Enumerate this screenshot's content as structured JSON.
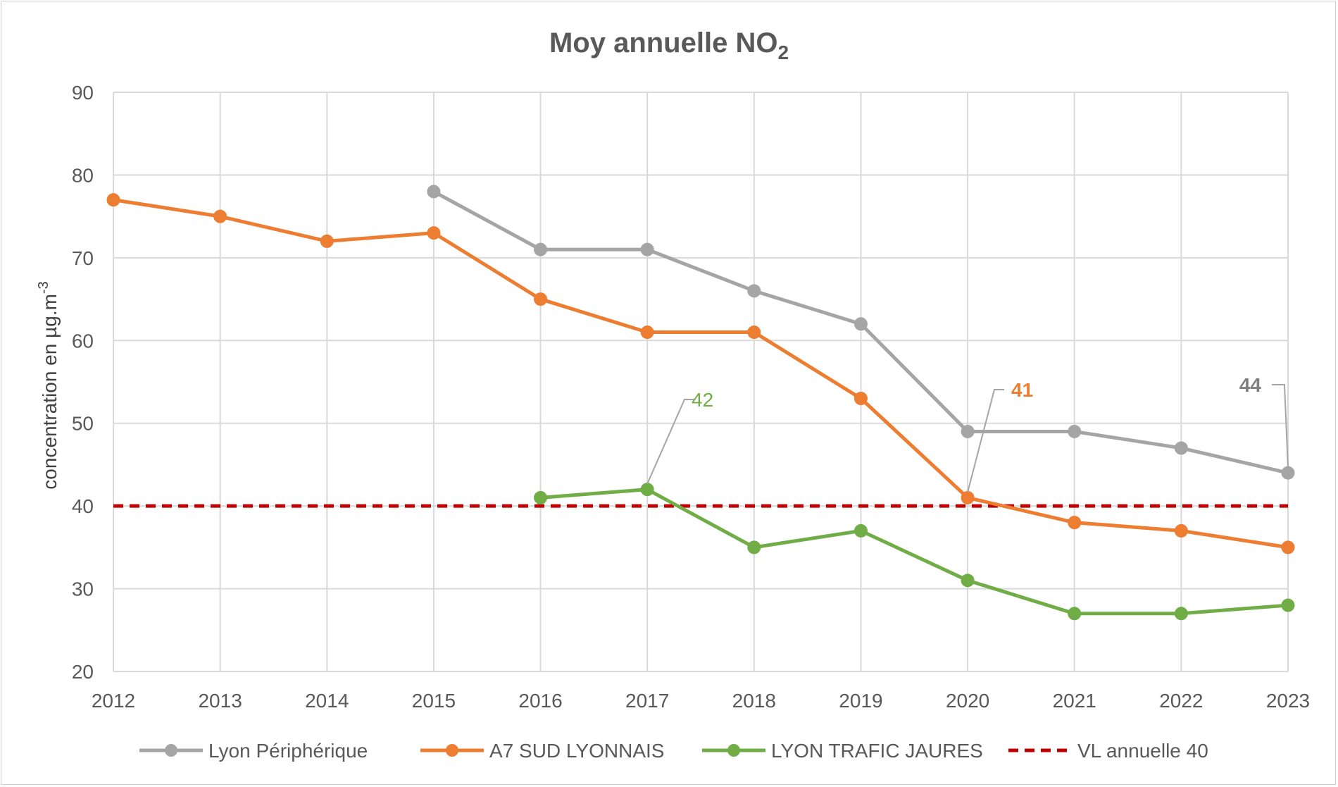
{
  "chart_data": {
    "type": "line",
    "title": "Moy annuelle NO",
    "title_subscript": "2",
    "ylabel": "concentration en µg.m",
    "ylabel_superscript": "-3",
    "xlabel": "",
    "x": [
      2012,
      2013,
      2014,
      2015,
      2016,
      2017,
      2018,
      2019,
      2020,
      2021,
      2022,
      2023
    ],
    "ylim": [
      20,
      90
    ],
    "yticks": [
      20,
      30,
      40,
      50,
      60,
      70,
      80,
      90
    ],
    "grid": true,
    "legend_position": "bottom",
    "series": [
      {
        "name": "Lyon Périphérique",
        "color": "#a5a5a5",
        "style": "solid-markers",
        "values": [
          null,
          null,
          null,
          78,
          71,
          71,
          66,
          62,
          49,
          49,
          47,
          44
        ]
      },
      {
        "name": "A7 SUD LYONNAIS",
        "color": "#ed7d31",
        "style": "solid-markers",
        "values": [
          77,
          75,
          72,
          73,
          65,
          61,
          61,
          53,
          41,
          38,
          37,
          35
        ]
      },
      {
        "name": "LYON TRAFIC JAURES",
        "color": "#70ad47",
        "style": "solid-markers",
        "values": [
          null,
          null,
          null,
          null,
          41,
          42,
          35,
          37,
          31,
          27,
          27,
          28
        ]
      },
      {
        "name": "VL annuelle 40",
        "color": "#c00000",
        "style": "dashed",
        "values": [
          40,
          40,
          40,
          40,
          40,
          40,
          40,
          40,
          40,
          40,
          40,
          40
        ]
      }
    ],
    "annotations": [
      {
        "text": "42",
        "series": 2,
        "x": 2017,
        "y": 42,
        "color": "#70ad47",
        "bold": false
      },
      {
        "text": "41",
        "series": 1,
        "x": 2020,
        "y": 41,
        "color": "#ed7d31",
        "bold": true
      },
      {
        "text": "44",
        "series": 0,
        "x": 2023,
        "y": 44,
        "color": "#7f7f7f",
        "bold": true
      }
    ]
  }
}
